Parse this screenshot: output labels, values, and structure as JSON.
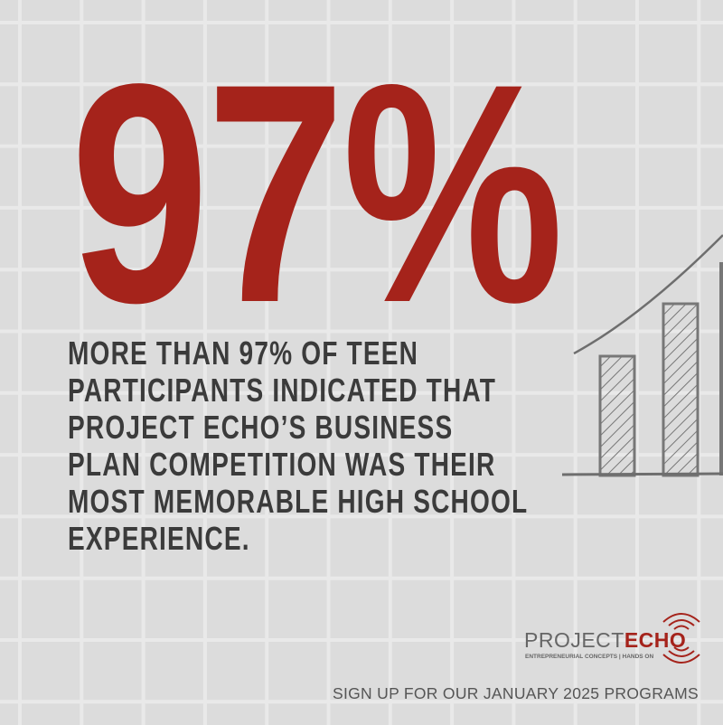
{
  "headline": "97%",
  "body_lines": [
    "MORE THAN 97% OF TEEN",
    "PARTICIPANTS INDICATED THAT",
    "PROJECT ECHO’S BUSINESS",
    "PLAN COMPETITION WAS THEIR",
    "MOST MEMORABLE HIGH SCHOOL",
    "EXPERIENCE."
  ],
  "logo": {
    "name_part1": "PROJECT",
    "name_part2": "ECHO",
    "tagline": "ENTREPRENEURIAL CONCEPTS | HANDS ON"
  },
  "footer": "SIGN UP FOR OUR JANUARY 2025 PROGRAMS",
  "colors": {
    "accent": "#a5231b",
    "text": "#3b3b3b",
    "background": "#dcdcdc"
  },
  "illustration": "hand-drawn-bar-chart-icon"
}
